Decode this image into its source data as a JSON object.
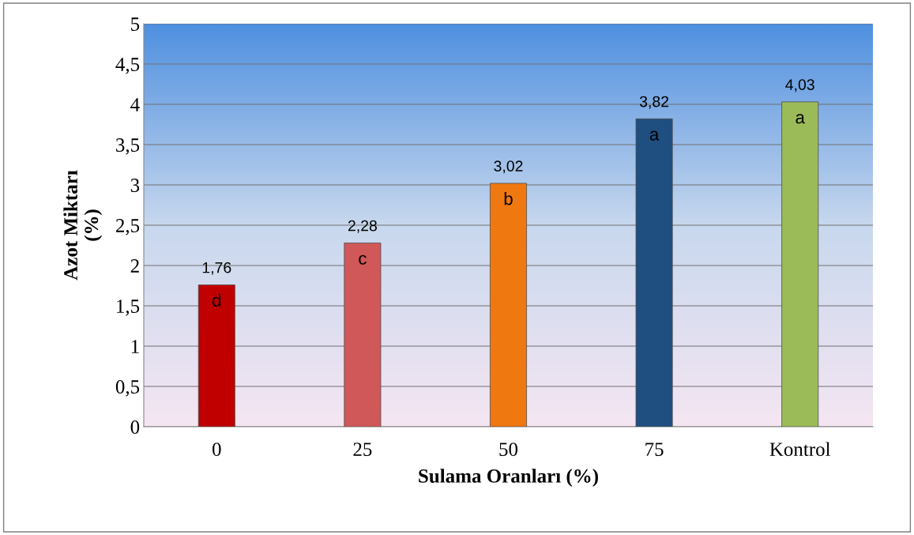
{
  "chart_data": {
    "type": "bar",
    "xlabel": "Sulama Oranları (%)",
    "ylabel": "Azot Miktarı\n(%)",
    "categories": [
      "0",
      "25",
      "50",
      "75",
      "Kontrol"
    ],
    "values": [
      1.76,
      2.28,
      3.02,
      3.82,
      4.03
    ],
    "colors": [
      "#c00000",
      "#d05858",
      "#f07810",
      "#1f4e80",
      "#9bbb59"
    ],
    "value_labels": [
      "1,76",
      "2,28",
      "3,02",
      "3,82",
      "4,03"
    ],
    "annotations": [
      {
        "text": "d",
        "x": "0",
        "y": 1.76
      },
      {
        "text": "c",
        "x": "25",
        "y": 2.28
      },
      {
        "text": "b",
        "x": "50",
        "y": 3.02
      },
      {
        "text": "a",
        "x": "75",
        "y": 3.82
      },
      {
        "text": "a",
        "x": "Kontrol",
        "y": 4.03
      }
    ],
    "ylim": [
      0,
      5
    ],
    "yticks": [
      0,
      {
        "value": 0.5,
        "label": "0,5"
      },
      1,
      {
        "value": 1.5,
        "label": "1,5"
      },
      2,
      {
        "value": 2.5,
        "label": "2,5"
      },
      3,
      {
        "value": 3.5,
        "label": "3,5"
      },
      4,
      {
        "value": 4.5,
        "label": "4,5"
      },
      5
    ],
    "grid": "y",
    "legend": false
  }
}
